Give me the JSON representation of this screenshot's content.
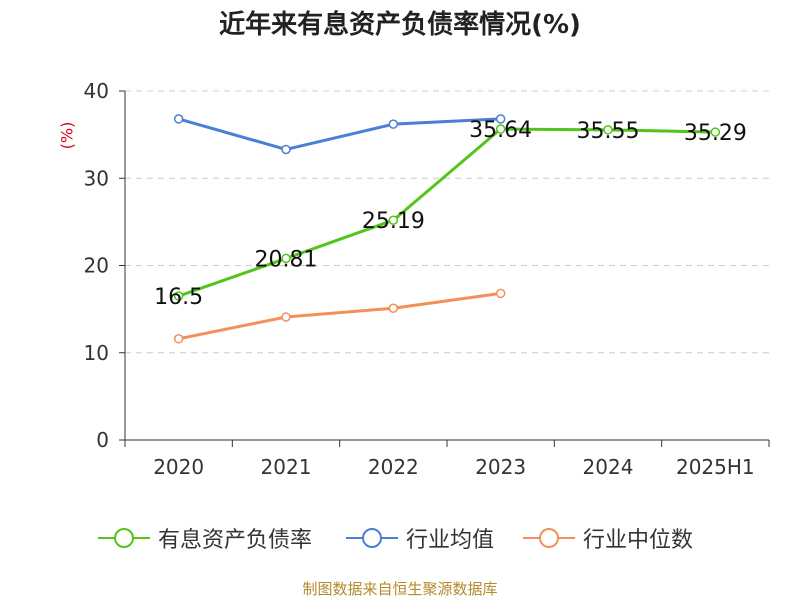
{
  "chart_data": {
    "type": "line",
    "title": "近年来有息资产负债率情况(%)",
    "ylabel": "(%)",
    "ylim": [
      0,
      40
    ],
    "yticks": [
      "0",
      "10",
      "20",
      "30",
      "40"
    ],
    "categories": [
      "2020",
      "2021",
      "2022",
      "2023",
      "2024",
      "2025H1"
    ],
    "grid": true,
    "legend": "bottom",
    "series": [
      {
        "name": "有息资产负债率",
        "color": "#52c41a",
        "values": [
          16.5,
          20.81,
          25.19,
          35.64,
          35.55,
          35.29
        ],
        "data_labels": [
          "16.5",
          "20.81",
          "25.19",
          "35.64",
          "35.55",
          "35.29"
        ]
      },
      {
        "name": "行业均值",
        "color": "#4a7fd6",
        "values": [
          36.8,
          33.3,
          36.2,
          36.8,
          null,
          null
        ]
      },
      {
        "name": "行业中位数",
        "color": "#f39058",
        "values": [
          11.6,
          14.1,
          15.1,
          16.8,
          null,
          null
        ]
      }
    ]
  },
  "ylabel_color": "#d9001b",
  "source": "制图数据来自恒生聚源数据库"
}
